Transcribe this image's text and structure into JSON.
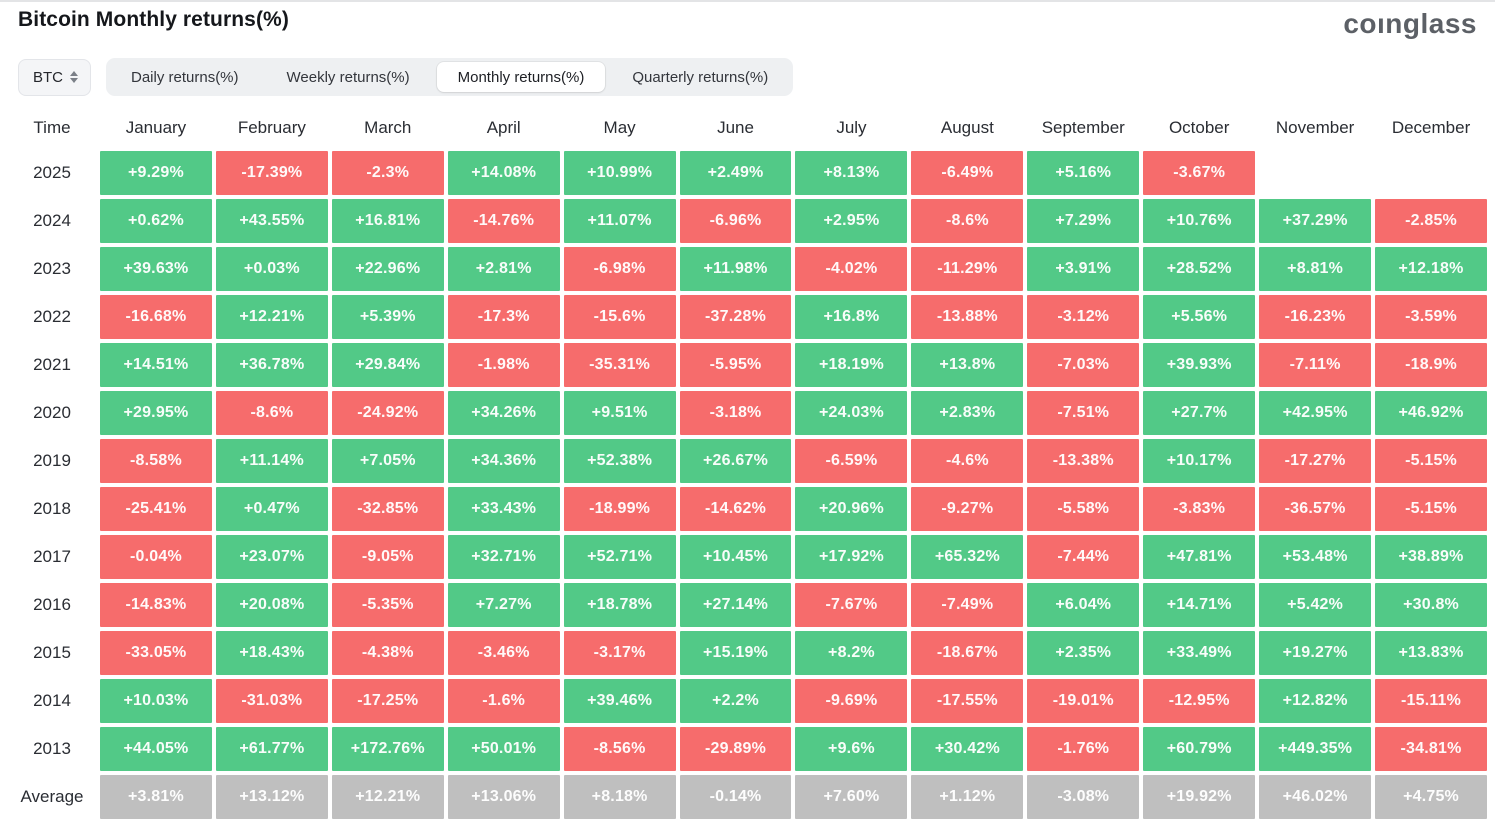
{
  "header": {
    "title": "Bitcoin Monthly returns(%)",
    "logo": "coınglass"
  },
  "controls": {
    "symbol_select": {
      "value": "BTC"
    },
    "tabs": [
      {
        "label": "Daily returns(%)",
        "active": false
      },
      {
        "label": "Weekly returns(%)",
        "active": false
      },
      {
        "label": "Monthly returns(%)",
        "active": true
      },
      {
        "label": "Quarterly returns(%)",
        "active": false
      }
    ]
  },
  "colors": {
    "positive": "#52c987",
    "negative": "#f66c6c",
    "average": "#bfbfbf"
  },
  "chart_data": {
    "type": "heatmap",
    "title": "Bitcoin Monthly returns(%)",
    "time_column_header": "Time",
    "columns": [
      "January",
      "February",
      "March",
      "April",
      "May",
      "June",
      "July",
      "August",
      "September",
      "October",
      "November",
      "December"
    ],
    "rows": [
      {
        "label": "2025",
        "type": "year",
        "values": [
          "+9.29%",
          "-17.39%",
          "-2.3%",
          "+14.08%",
          "+10.99%",
          "+2.49%",
          "+8.13%",
          "-6.49%",
          "+5.16%",
          "-3.67%",
          "",
          ""
        ]
      },
      {
        "label": "2024",
        "type": "year",
        "values": [
          "+0.62%",
          "+43.55%",
          "+16.81%",
          "-14.76%",
          "+11.07%",
          "-6.96%",
          "+2.95%",
          "-8.6%",
          "+7.29%",
          "+10.76%",
          "+37.29%",
          "-2.85%"
        ]
      },
      {
        "label": "2023",
        "type": "year",
        "values": [
          "+39.63%",
          "+0.03%",
          "+22.96%",
          "+2.81%",
          "-6.98%",
          "+11.98%",
          "-4.02%",
          "-11.29%",
          "+3.91%",
          "+28.52%",
          "+8.81%",
          "+12.18%"
        ]
      },
      {
        "label": "2022",
        "type": "year",
        "values": [
          "-16.68%",
          "+12.21%",
          "+5.39%",
          "-17.3%",
          "-15.6%",
          "-37.28%",
          "+16.8%",
          "-13.88%",
          "-3.12%",
          "+5.56%",
          "-16.23%",
          "-3.59%"
        ]
      },
      {
        "label": "2021",
        "type": "year",
        "values": [
          "+14.51%",
          "+36.78%",
          "+29.84%",
          "-1.98%",
          "-35.31%",
          "-5.95%",
          "+18.19%",
          "+13.8%",
          "-7.03%",
          "+39.93%",
          "-7.11%",
          "-18.9%"
        ]
      },
      {
        "label": "2020",
        "type": "year",
        "values": [
          "+29.95%",
          "-8.6%",
          "-24.92%",
          "+34.26%",
          "+9.51%",
          "-3.18%",
          "+24.03%",
          "+2.83%",
          "-7.51%",
          "+27.7%",
          "+42.95%",
          "+46.92%"
        ]
      },
      {
        "label": "2019",
        "type": "year",
        "values": [
          "-8.58%",
          "+11.14%",
          "+7.05%",
          "+34.36%",
          "+52.38%",
          "+26.67%",
          "-6.59%",
          "-4.6%",
          "-13.38%",
          "+10.17%",
          "-17.27%",
          "-5.15%"
        ]
      },
      {
        "label": "2018",
        "type": "year",
        "values": [
          "-25.41%",
          "+0.47%",
          "-32.85%",
          "+33.43%",
          "-18.99%",
          "-14.62%",
          "+20.96%",
          "-9.27%",
          "-5.58%",
          "-3.83%",
          "-36.57%",
          "-5.15%"
        ]
      },
      {
        "label": "2017",
        "type": "year",
        "values": [
          "-0.04%",
          "+23.07%",
          "-9.05%",
          "+32.71%",
          "+52.71%",
          "+10.45%",
          "+17.92%",
          "+65.32%",
          "-7.44%",
          "+47.81%",
          "+53.48%",
          "+38.89%"
        ]
      },
      {
        "label": "2016",
        "type": "year",
        "values": [
          "-14.83%",
          "+20.08%",
          "-5.35%",
          "+7.27%",
          "+18.78%",
          "+27.14%",
          "-7.67%",
          "-7.49%",
          "+6.04%",
          "+14.71%",
          "+5.42%",
          "+30.8%"
        ]
      },
      {
        "label": "2015",
        "type": "year",
        "values": [
          "-33.05%",
          "+18.43%",
          "-4.38%",
          "-3.46%",
          "-3.17%",
          "+15.19%",
          "+8.2%",
          "-18.67%",
          "+2.35%",
          "+33.49%",
          "+19.27%",
          "+13.83%"
        ]
      },
      {
        "label": "2014",
        "type": "year",
        "values": [
          "+10.03%",
          "-31.03%",
          "-17.25%",
          "-1.6%",
          "+39.46%",
          "+2.2%",
          "-9.69%",
          "-17.55%",
          "-19.01%",
          "-12.95%",
          "+12.82%",
          "-15.11%"
        ]
      },
      {
        "label": "2013",
        "type": "year",
        "values": [
          "+44.05%",
          "+61.77%",
          "+172.76%",
          "+50.01%",
          "-8.56%",
          "-29.89%",
          "+9.6%",
          "+30.42%",
          "-1.76%",
          "+60.79%",
          "+449.35%",
          "-34.81%"
        ]
      },
      {
        "label": "Average",
        "type": "average",
        "values": [
          "+3.81%",
          "+13.12%",
          "+12.21%",
          "+13.06%",
          "+8.18%",
          "-0.14%",
          "+7.60%",
          "+1.12%",
          "-3.08%",
          "+19.92%",
          "+46.02%",
          "+4.75%"
        ]
      }
    ]
  }
}
